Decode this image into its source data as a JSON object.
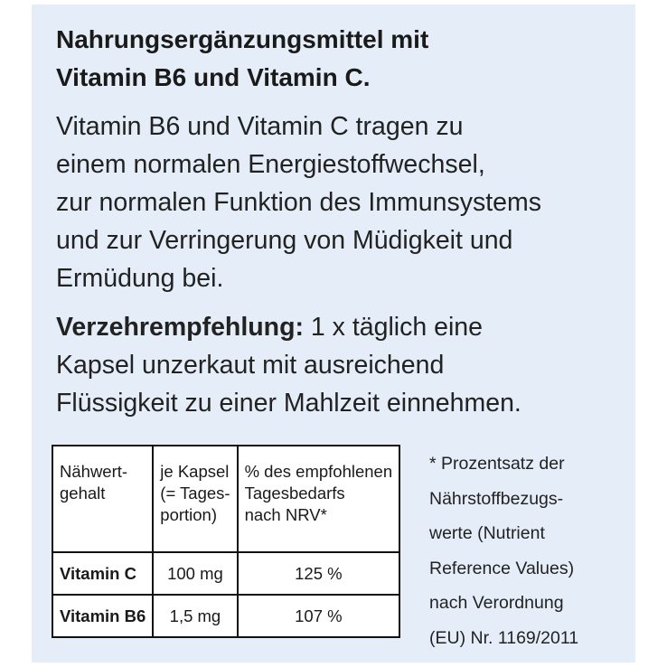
{
  "title_lines": [
    "Nahrungsergänzungsmittel mit",
    "Vitamin B6 und Vitamin C."
  ],
  "description_lines": [
    "Vitamin B6 und Vitamin C tragen zu",
    "einem normalen Energiestoffwechsel,",
    "zur normalen Funktion des Immunsystems",
    "und zur Verringerung von Müdigkeit und",
    "Ermüdung bei."
  ],
  "recommendation": {
    "label": "Verzehrempfehlung:",
    "lines": [
      " 1 x täglich eine",
      "Kapsel unzerkaut mit ausreichend",
      "Flüssigkeit zu einer Mahlzeit einnehmen."
    ]
  },
  "table": {
    "headers": [
      [
        "Nähwert-",
        "gehalt"
      ],
      [
        "je Kapsel",
        "(= Tages-",
        "portion)"
      ],
      [
        "% des empfohlenen",
        "Tagesbedarfs",
        "nach NRV*"
      ]
    ],
    "rows": [
      {
        "nutrient": "Vitamin C",
        "amount": "100 mg",
        "nrv": "125 %"
      },
      {
        "nutrient": "Vitamin B6",
        "amount": "1,5 mg",
        "nrv": "107 %"
      }
    ]
  },
  "footnote_lines": [
    "* Prozentsatz der",
    "Nährstoffbezugs-",
    "werte (Nutrient",
    "Reference Values)",
    "nach Verordnung",
    "(EU) Nr. 1169/2011"
  ],
  "colors": {
    "panel_background": "#e5eef8",
    "text": "#1a1a1a"
  }
}
